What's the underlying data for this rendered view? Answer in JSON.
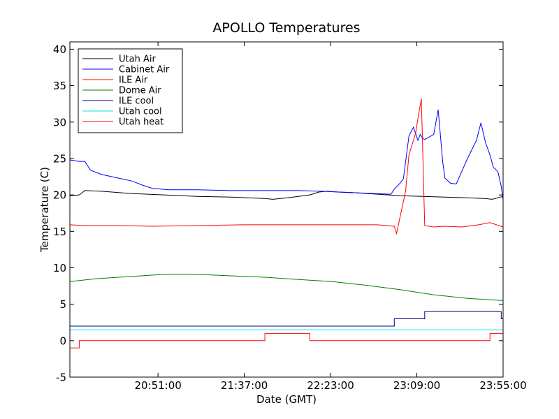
{
  "chart_data": {
    "type": "line",
    "title": "APOLLO Temperatures",
    "xlabel": "Date (GMT)",
    "ylabel": "Temperature (C)",
    "ylim": [
      -5,
      41
    ],
    "xlim_hours": [
      20.0667,
      23.9167
    ],
    "grid": false,
    "legend_position": "top-left",
    "yticks": [
      {
        "value": -5,
        "label": "-5"
      },
      {
        "value": 0,
        "label": "0"
      },
      {
        "value": 5,
        "label": "5"
      },
      {
        "value": 10,
        "label": "10"
      },
      {
        "value": 15,
        "label": "15"
      },
      {
        "value": 20,
        "label": "20"
      },
      {
        "value": 25,
        "label": "25"
      },
      {
        "value": 30,
        "label": "30"
      },
      {
        "value": 35,
        "label": "35"
      },
      {
        "value": 40,
        "label": "40"
      }
    ],
    "xticks": [
      {
        "value": 20.85,
        "label": "20:51:00"
      },
      {
        "value": 21.6167,
        "label": "21:37:00"
      },
      {
        "value": 22.3833,
        "label": "22:23:00"
      },
      {
        "value": 23.15,
        "label": "23:09:00"
      },
      {
        "value": 23.9167,
        "label": "23:55:00"
      }
    ],
    "series": [
      {
        "name": "Utah Air",
        "color": "#000000",
        "step": false,
        "x": [
          20.0667,
          20.15,
          20.2,
          20.35,
          20.6,
          20.9,
          21.2,
          21.5,
          21.8,
          21.87,
          22.0,
          22.2,
          22.28,
          22.35,
          22.45,
          22.6,
          22.8,
          23.0,
          23.2,
          23.4,
          23.6,
          23.75,
          23.82,
          23.9167
        ],
        "values": [
          19.9,
          20.0,
          20.6,
          20.5,
          20.2,
          20.0,
          19.8,
          19.7,
          19.5,
          19.4,
          19.6,
          20.0,
          20.4,
          20.5,
          20.4,
          20.3,
          20.1,
          19.9,
          19.8,
          19.7,
          19.6,
          19.5,
          19.4,
          19.8
        ]
      },
      {
        "name": "Cabinet Air",
        "color": "#0000ff",
        "step": false,
        "x": [
          20.0667,
          20.15,
          20.2,
          20.25,
          20.35,
          20.5,
          20.62,
          20.72,
          20.8,
          20.95,
          21.2,
          21.5,
          21.8,
          22.1,
          22.3,
          22.6,
          22.92,
          22.95,
          23.0,
          23.03,
          23.05,
          23.08,
          23.12,
          23.16,
          23.18,
          23.2,
          23.22,
          23.3,
          23.34,
          23.38,
          23.4,
          23.45,
          23.5,
          23.6,
          23.68,
          23.72,
          23.76,
          23.8,
          23.83,
          23.87,
          23.9,
          23.9167
        ],
        "values": [
          24.8,
          24.6,
          24.6,
          23.4,
          22.8,
          22.3,
          21.9,
          21.3,
          20.9,
          20.7,
          20.7,
          20.6,
          20.6,
          20.6,
          20.5,
          20.3,
          20.1,
          20.8,
          21.6,
          22.2,
          24.5,
          28.1,
          29.3,
          27.5,
          28.3,
          27.8,
          27.6,
          28.3,
          31.7,
          24.5,
          22.3,
          21.6,
          21.5,
          25.0,
          27.5,
          29.9,
          27.2,
          25.5,
          23.8,
          23.2,
          21.2,
          19.3
        ]
      },
      {
        "name": "ILE Air",
        "color": "#ff0000",
        "step": false,
        "x": [
          20.0667,
          20.2,
          20.5,
          20.8,
          21.2,
          21.6,
          22.0,
          22.4,
          22.8,
          22.95,
          22.97,
          23.05,
          23.08,
          23.14,
          23.16,
          23.19,
          23.22,
          23.3,
          23.4,
          23.55,
          23.7,
          23.8,
          23.9167
        ],
        "values": [
          15.9,
          15.8,
          15.8,
          15.7,
          15.8,
          15.9,
          15.9,
          15.9,
          15.9,
          15.7,
          14.7,
          20.5,
          25.5,
          28.5,
          30.5,
          33.2,
          15.8,
          15.6,
          15.7,
          15.6,
          15.9,
          16.2,
          15.6
        ]
      },
      {
        "name": "Dome Air",
        "color": "#008000",
        "step": false,
        "x": [
          20.0667,
          20.3,
          20.5,
          20.7,
          20.9,
          21.2,
          21.5,
          21.8,
          22.1,
          22.4,
          22.7,
          23.0,
          23.3,
          23.6,
          23.9167
        ],
        "values": [
          8.1,
          8.5,
          8.7,
          8.9,
          9.1,
          9.1,
          8.9,
          8.7,
          8.4,
          8.1,
          7.6,
          7.0,
          6.3,
          5.8,
          5.5
        ]
      },
      {
        "name": "ILE cool",
        "color": "#000080",
        "step": true,
        "x": [
          20.0667,
          22.95,
          23.22,
          23.9,
          23.9167
        ],
        "values": [
          2.0,
          3.0,
          4.0,
          3.0,
          3.0
        ]
      },
      {
        "name": "Utah cool",
        "color": "#00e5e5",
        "step": true,
        "x": [
          20.0667,
          23.9167
        ],
        "values": [
          1.5,
          1.5
        ]
      },
      {
        "name": "Utah heat",
        "color": "#ff0000",
        "step": true,
        "x": [
          20.0667,
          20.15,
          21.8,
          22.2,
          23.8,
          23.9167
        ],
        "values": [
          -1.0,
          0.0,
          1.0,
          0.0,
          1.0,
          1.0
        ]
      }
    ]
  }
}
